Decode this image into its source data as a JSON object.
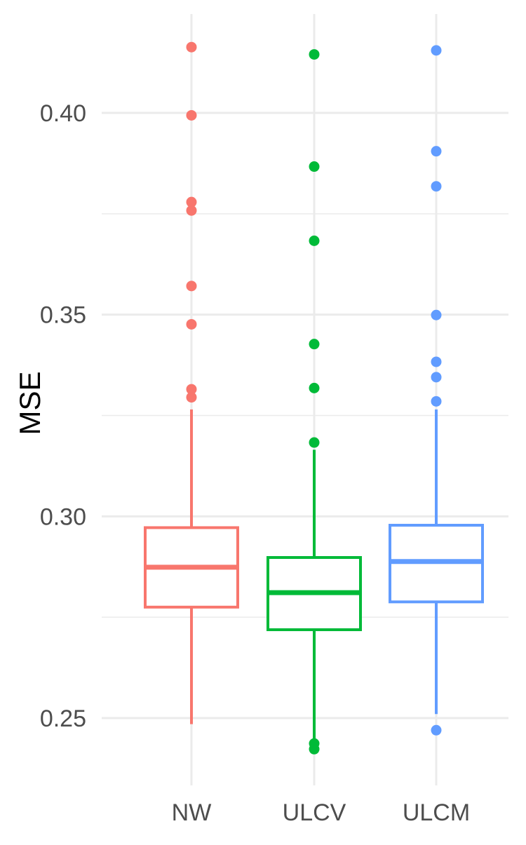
{
  "chart_data": {
    "type": "box",
    "title": "",
    "xlabel": "",
    "ylabel": "MSE",
    "ylim": [
      0.235,
      0.425
    ],
    "yticks": [
      0.25,
      0.3,
      0.35,
      0.4
    ],
    "ytick_labels": [
      "0.25",
      "0.30",
      "0.35",
      "0.40"
    ],
    "grid": true,
    "legend": "none",
    "categories": [
      "NW",
      "ULCV",
      "ULCM"
    ],
    "series": [
      {
        "category": "NW",
        "color": "#F8766D",
        "whisker_low": 0.2485,
        "q1": 0.2775,
        "median": 0.2874,
        "q3": 0.2972,
        "whisker_high": 0.3265,
        "outliers": [
          0.4163,
          0.3994,
          0.3779,
          0.3758,
          0.3571,
          0.3476,
          0.3315,
          0.3295
        ]
      },
      {
        "category": "ULCV",
        "color": "#00BA38",
        "whisker_low": 0.2445,
        "q1": 0.2719,
        "median": 0.2811,
        "q3": 0.2898,
        "whisker_high": 0.3165,
        "outliers": [
          0.4145,
          0.3867,
          0.3683,
          0.3427,
          0.3318,
          0.3183,
          0.2437,
          0.2423
        ]
      },
      {
        "category": "ULCM",
        "color": "#619CFF",
        "whisker_low": 0.251,
        "q1": 0.2788,
        "median": 0.2888,
        "q3": 0.2978,
        "whisker_high": 0.3265,
        "outliers": [
          0.4155,
          0.3905,
          0.3818,
          0.3499,
          0.3383,
          0.3345,
          0.3285,
          0.247
        ]
      }
    ]
  }
}
